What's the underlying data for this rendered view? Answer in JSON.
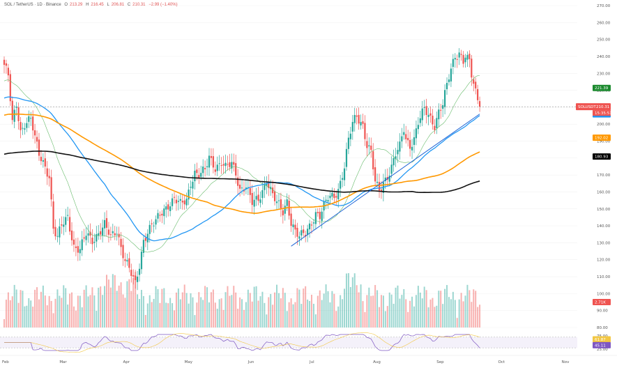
{
  "header": {
    "symbol": "SOL / TetherUS · 1D · Binance",
    "o_label": "O",
    "o": "213.29",
    "h_label": "H",
    "h": "216.45",
    "l_label": "L",
    "l": "206.81",
    "c_label": "C",
    "c": "210.31",
    "change": "−2.99 (−1.40%)"
  },
  "colors": {
    "up": "#26a69a",
    "down": "#ef5350",
    "ma20": "#66bb6a",
    "ma50": "#2196f3",
    "ma100": "#ff9800",
    "ma200": "#111111",
    "rsi": "#7e57c2"
  },
  "chart_data": {
    "type": "candlestick",
    "title": "SOL / TetherUS · 1D · Binance",
    "ylim": [
      80,
      270
    ],
    "y_ticks": [
      80,
      90,
      100,
      110,
      120,
      130,
      140,
      150,
      160,
      170,
      180,
      190,
      200,
      210,
      220,
      230,
      240,
      250,
      260,
      270
    ],
    "x_labels": [
      "Feb",
      "Mar",
      "Apr",
      "May",
      "Jun",
      "Jul",
      "Aug",
      "Sep",
      "Oct",
      "Nov"
    ],
    "x_label_days": [
      0,
      28,
      59,
      89,
      120,
      150,
      181,
      212,
      242,
      273
    ],
    "close_anchors": [
      [
        0,
        235
      ],
      [
        2,
        228
      ],
      [
        4,
        200
      ],
      [
        6,
        212
      ],
      [
        8,
        196
      ],
      [
        10,
        201
      ],
      [
        13,
        203
      ],
      [
        15,
        191
      ],
      [
        17,
        182
      ],
      [
        19,
        178
      ],
      [
        22,
        170
      ],
      [
        24,
        138
      ],
      [
        26,
        132
      ],
      [
        28,
        140
      ],
      [
        31,
        146
      ],
      [
        34,
        128
      ],
      [
        37,
        125
      ],
      [
        40,
        135
      ],
      [
        43,
        132
      ],
      [
        46,
        136
      ],
      [
        49,
        140
      ],
      [
        52,
        133
      ],
      [
        55,
        138
      ],
      [
        57,
        128
      ],
      [
        59,
        120
      ],
      [
        61,
        114
      ],
      [
        63,
        108
      ],
      [
        64,
        105
      ],
      [
        66,
        117
      ],
      [
        68,
        132
      ],
      [
        70,
        137
      ],
      [
        72,
        140
      ],
      [
        74,
        142
      ],
      [
        77,
        148
      ],
      [
        80,
        153
      ],
      [
        83,
        156
      ],
      [
        86,
        152
      ],
      [
        89,
        155
      ],
      [
        91,
        166
      ],
      [
        93,
        172
      ],
      [
        95,
        170
      ],
      [
        98,
        172
      ],
      [
        100,
        180
      ],
      [
        103,
        175
      ],
      [
        106,
        178
      ],
      [
        108,
        174
      ],
      [
        111,
        176
      ],
      [
        113,
        171
      ],
      [
        115,
        162
      ],
      [
        118,
        164
      ],
      [
        121,
        153
      ],
      [
        124,
        155
      ],
      [
        126,
        161
      ],
      [
        128,
        168
      ],
      [
        131,
        158
      ],
      [
        133,
        153
      ],
      [
        136,
        148
      ],
      [
        138,
        155
      ],
      [
        140,
        143
      ],
      [
        142,
        137
      ],
      [
        144,
        133
      ],
      [
        147,
        135
      ],
      [
        149,
        140
      ],
      [
        152,
        148
      ],
      [
        154,
        146
      ],
      [
        156,
        151
      ],
      [
        158,
        156
      ],
      [
        161,
        158
      ],
      [
        163,
        162
      ],
      [
        166,
        175
      ],
      [
        168,
        190
      ],
      [
        170,
        200
      ],
      [
        172,
        205
      ],
      [
        175,
        200
      ],
      [
        177,
        188
      ],
      [
        179,
        183
      ],
      [
        181,
        165
      ],
      [
        183,
        160
      ],
      [
        185,
        166
      ],
      [
        187,
        170
      ],
      [
        189,
        175
      ],
      [
        191,
        182
      ],
      [
        193,
        186
      ],
      [
        195,
        197
      ],
      [
        196,
        191
      ],
      [
        198,
        188
      ],
      [
        200,
        192
      ],
      [
        202,
        201
      ],
      [
        205,
        208
      ],
      [
        207,
        205
      ],
      [
        210,
        200
      ],
      [
        212,
        208
      ],
      [
        214,
        212
      ],
      [
        216,
        222
      ],
      [
        218,
        232
      ],
      [
        220,
        240
      ],
      [
        222,
        243
      ],
      [
        224,
        238
      ],
      [
        225,
        241
      ],
      [
        227,
        236
      ],
      [
        228,
        228
      ],
      [
        230,
        218
      ],
      [
        231,
        214
      ],
      [
        232,
        210.31
      ]
    ],
    "rsi": {
      "upper": 70,
      "lower": 30,
      "ticks": [
        75,
        50,
        25
      ],
      "last": 45.11,
      "signal": 61.87
    },
    "series": [
      {
        "name": "MA20",
        "last": 221.39
      },
      {
        "name": "MA50",
        "last": 206.21
      },
      {
        "name": "MA100",
        "last": 192.02
      },
      {
        "name": "MA200",
        "last": 180.93
      }
    ],
    "trendline": {
      "from_day": 140,
      "from_price": 128,
      "to_day": 232,
      "to_price": 206
    },
    "price_tag": {
      "symbol": "SOLUSDT",
      "price": 210.31,
      "countdown": "15:35:51"
    },
    "volume_tag": "2.71K"
  }
}
